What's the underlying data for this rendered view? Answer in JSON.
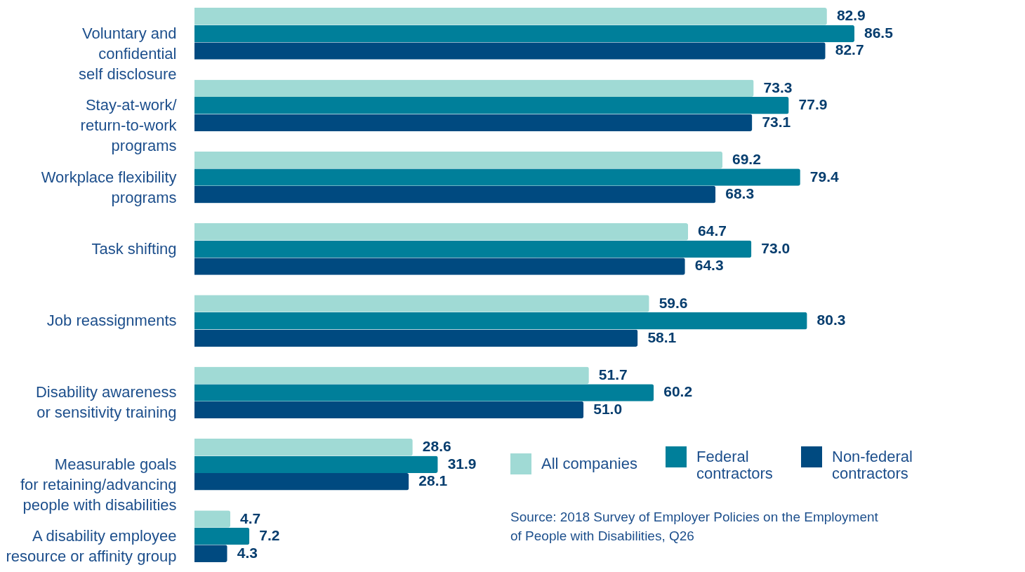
{
  "chart_data": {
    "type": "bar",
    "orientation": "horizontal",
    "grid": false,
    "legend": "bottom right",
    "categories": [
      "Voluntary and\nconfidential\nself disclosure",
      "Stay-at-work/\nreturn-to-work\nprograms",
      "Workplace flexibility\nprograms",
      "Task shifting",
      "Job reassignments",
      "Disability awareness\nor sensitivity training",
      "Measurable goals\nfor retaining/advancing\npeople with disabilities",
      "A disability employee\nresource or affinity group"
    ],
    "series": [
      {
        "name": "All companies",
        "color": "#a0dad5",
        "values": [
          82.9,
          73.3,
          69.2,
          64.7,
          59.6,
          51.7,
          28.6,
          4.7
        ],
        "value_labels": [
          "82.9",
          "73.3",
          "69.2",
          "64.7",
          "59.6",
          "51.7",
          "28.6",
          "4.7"
        ]
      },
      {
        "name": "Federal\ncontractors",
        "color": "#007f9a",
        "values": [
          86.5,
          77.9,
          79.4,
          73.0,
          80.3,
          60.2,
          31.9,
          7.2
        ],
        "value_labels": [
          "86.5",
          "77.9",
          "79.4",
          "73.0",
          "80.3",
          "60.2",
          "31.9",
          "7.2"
        ]
      },
      {
        "name": "Non-federal\ncontractors",
        "color": "#004a80",
        "values": [
          82.7,
          73.1,
          68.3,
          64.3,
          58.1,
          51.0,
          28.1,
          4.3
        ],
        "value_labels": [
          "82.7",
          "73.1",
          "68.3",
          "64.3",
          "58.1",
          "51.0",
          "28.1",
          "4.3"
        ]
      }
    ],
    "annotations": [
      "Source: 2018 Survey of Employer Policies on the Employment\nof People with Disabilities, Q26"
    ]
  }
}
